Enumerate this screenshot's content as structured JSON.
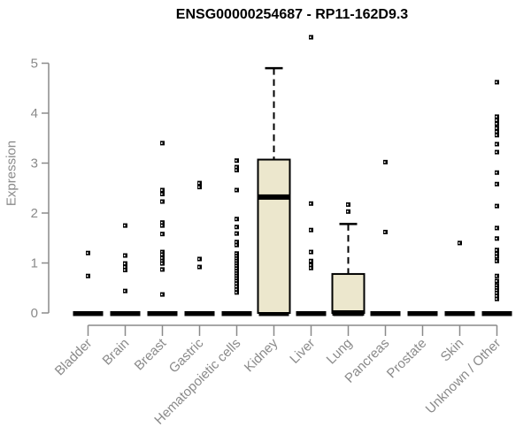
{
  "colors": {
    "title": "#000000",
    "axis": "#8a8a8a",
    "box_fill": "#ece7cd",
    "box_stroke": "#000000",
    "point": "#000000",
    "background": "#ffffff"
  },
  "chart_data": {
    "type": "boxplot",
    "title": "ENSG00000254687 - RP11-162D9.3",
    "xlabel": "",
    "ylabel": "Expression",
    "ylim": [
      0,
      5.6
    ],
    "yticks": [
      0,
      1,
      2,
      3,
      4,
      5
    ],
    "grid": false,
    "legend": null,
    "categories": [
      "Bladder",
      "Brain",
      "Breast",
      "Gastric",
      "Hematopoietic cells",
      "Kidney",
      "Liver",
      "Lung",
      "Pancreas",
      "Prostate",
      "Skin",
      "Unknown / Other"
    ],
    "series": [
      {
        "name": "Bladder",
        "box": {
          "q1": 0,
          "median": 0,
          "q3": 0,
          "whisker_low": 0,
          "whisker_high": 0
        },
        "points": [
          1.2,
          0.74
        ]
      },
      {
        "name": "Brain",
        "box": {
          "q1": 0,
          "median": 0,
          "q3": 0,
          "whisker_low": 0,
          "whisker_high": 0
        },
        "points": [
          1.75,
          1.15,
          0.99,
          0.92,
          0.86,
          0.44
        ]
      },
      {
        "name": "Breast",
        "box": {
          "q1": 0,
          "median": 0,
          "q3": 0,
          "whisker_low": 0,
          "whisker_high": 0
        },
        "points": [
          3.4,
          2.46,
          2.38,
          2.23,
          1.81,
          1.75,
          1.58,
          1.22,
          1.17,
          1.1,
          1.04,
          0.99,
          0.87,
          0.37
        ]
      },
      {
        "name": "Gastric",
        "box": {
          "q1": 0,
          "median": 0,
          "q3": 0,
          "whisker_low": 0,
          "whisker_high": 0
        },
        "points": [
          2.6,
          2.52,
          1.08,
          0.92
        ]
      },
      {
        "name": "Hematopoietic cells",
        "box": {
          "q1": 0,
          "median": 0,
          "q3": 0,
          "whisker_low": 0,
          "whisker_high": 0
        },
        "points": [
          3.05,
          2.92,
          2.86,
          2.46,
          1.88,
          1.72,
          1.59,
          1.42,
          1.36,
          1.19,
          1.14,
          1.09,
          1.04,
          0.99,
          0.94,
          0.89,
          0.84,
          0.79,
          0.74,
          0.69,
          0.64,
          0.59,
          0.53,
          0.47,
          0.41
        ]
      },
      {
        "name": "Kidney",
        "box": {
          "q1": 0,
          "median": 2.32,
          "q3": 3.07,
          "whisker_low": 0,
          "whisker_high": 4.9
        },
        "points": []
      },
      {
        "name": "Liver",
        "box": {
          "q1": 0,
          "median": 0,
          "q3": 0,
          "whisker_low": 0,
          "whisker_high": 0
        },
        "points": [
          5.52,
          2.19,
          1.66,
          1.22,
          1.04,
          0.96,
          0.9
        ]
      },
      {
        "name": "Lung",
        "box": {
          "q1": 0,
          "median": 0,
          "q3": 0.78,
          "whisker_low": 0,
          "whisker_high": 1.78
        },
        "points": [
          2.17,
          2.03
        ]
      },
      {
        "name": "Pancreas",
        "box": {
          "q1": 0,
          "median": 0,
          "q3": 0,
          "whisker_low": 0,
          "whisker_high": 0
        },
        "points": [
          3.02,
          1.62
        ]
      },
      {
        "name": "Prostate",
        "box": {
          "q1": 0,
          "median": 0,
          "q3": 0,
          "whisker_low": 0,
          "whisker_high": 0
        },
        "points": []
      },
      {
        "name": "Skin",
        "box": {
          "q1": 0,
          "median": 0,
          "q3": 0,
          "whisker_low": 0,
          "whisker_high": 0
        },
        "points": [
          1.4
        ]
      },
      {
        "name": "Unknown / Other",
        "box": {
          "q1": 0,
          "median": 0,
          "q3": 0,
          "whisker_low": 0,
          "whisker_high": 0
        },
        "points": [
          4.62,
          3.93,
          3.86,
          3.79,
          3.7,
          3.63,
          3.56,
          3.38,
          3.22,
          2.81,
          2.58,
          2.14,
          1.7,
          1.49,
          1.26,
          1.19,
          1.13,
          1.04,
          0.74,
          0.64,
          0.55,
          0.5,
          0.45,
          0.4,
          0.34,
          0.28
        ]
      }
    ]
  }
}
